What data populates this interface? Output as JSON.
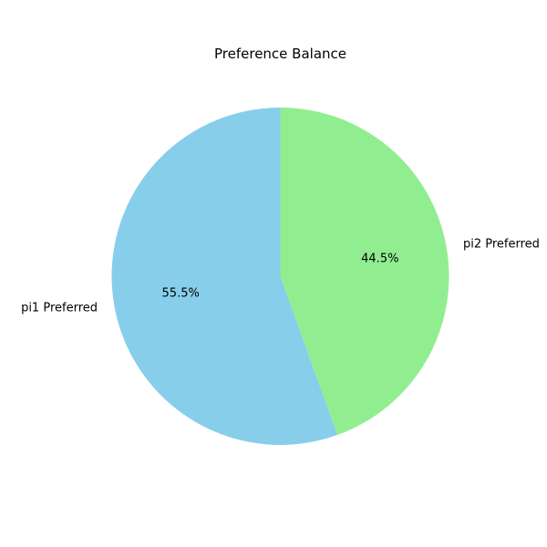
{
  "chart_data": {
    "type": "pie",
    "title": "Preference Balance",
    "start_angle_deg": 90,
    "direction": "counterclockwise",
    "slices": [
      {
        "label": "pi1 Preferred",
        "value": 55.5,
        "pct_label": "55.5%",
        "color": "#87CEEB"
      },
      {
        "label": "pi2 Preferred",
        "value": 44.5,
        "pct_label": "44.5%",
        "color": "#90EE90"
      }
    ]
  }
}
